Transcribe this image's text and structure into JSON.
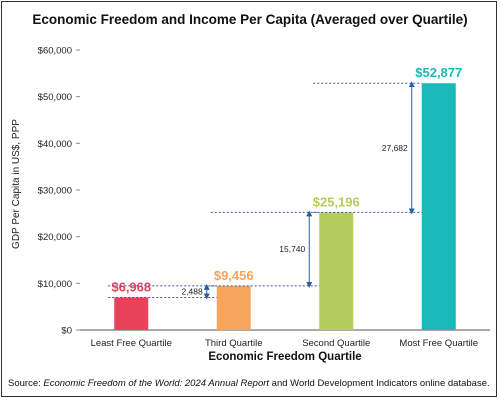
{
  "chart_data": {
    "type": "bar",
    "title": "Economic Freedom and Income Per Capita (Averaged over Quartile)",
    "xlabel": "Economic Freedom Quartile",
    "ylabel": "GDP Per Capita in US$, PPP",
    "categories": [
      "Least Free Quartile",
      "Third Quartile",
      "Second Quartile",
      "Most Free Quartile"
    ],
    "values": [
      6968,
      9456,
      25196,
      52877
    ],
    "value_labels": [
      "$6,968",
      "$9,456",
      "$25,196",
      "$52,877"
    ],
    "colors": [
      "#e8435a",
      "#f5a55c",
      "#b5cc5e",
      "#1ab9b9"
    ],
    "ylim": [
      0,
      60000
    ],
    "yticks": [
      0,
      10000,
      20000,
      30000,
      40000,
      50000,
      60000
    ],
    "ytick_labels": [
      "$0",
      "$10,000",
      "$20,000",
      "$30,000",
      "$40,000",
      "$50,000",
      "$60,000"
    ],
    "grid": false,
    "difference_annotations": [
      {
        "from": 6968,
        "to": 9456,
        "label": "2,488"
      },
      {
        "from": 9456,
        "to": 25196,
        "label": "15,740"
      },
      {
        "from": 25196,
        "to": 52877,
        "label": "27,682"
      }
    ],
    "source_prefix": "Source: ",
    "source_italic": "Economic Freedom of the World: 2024 Annual Report",
    "source_suffix": " and World Development Indicators online database."
  }
}
